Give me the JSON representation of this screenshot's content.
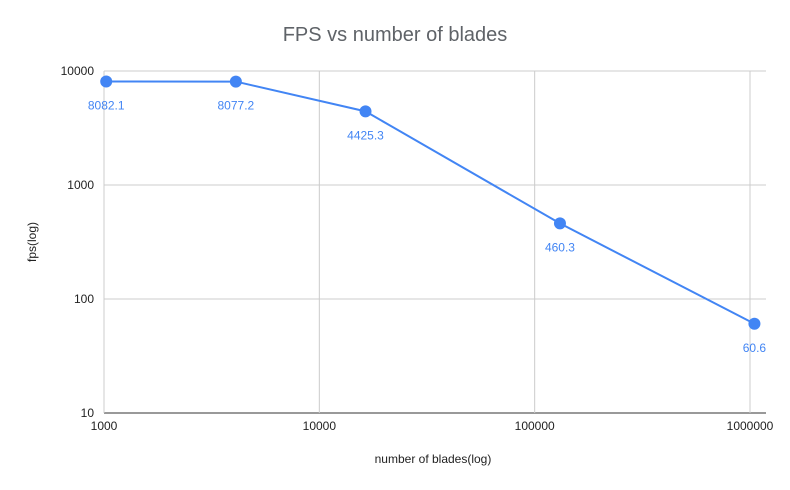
{
  "chart_data": {
    "type": "line",
    "title": "FPS vs number of blades",
    "xlabel": "number of blades(log)",
    "ylabel": "fps(log)",
    "x_scale": "log",
    "y_scale": "log",
    "xlim": [
      1000,
      1000000
    ],
    "ylim": [
      10,
      10000
    ],
    "x_ticks": [
      "1000",
      "10000",
      "100000",
      "1000000"
    ],
    "y_ticks": [
      "10",
      "100",
      "1000",
      "10000"
    ],
    "grid": true,
    "legend": "none",
    "series": [
      {
        "color": "#4285f4",
        "x": [
          1024,
          4096,
          16384,
          131072,
          1048576
        ],
        "y": [
          8082.1,
          8077.2,
          4425.3,
          460.3,
          60.6
        ],
        "labels": [
          "8082.1",
          "8077.2",
          "4425.3",
          "460.3",
          "60.6"
        ]
      }
    ]
  }
}
